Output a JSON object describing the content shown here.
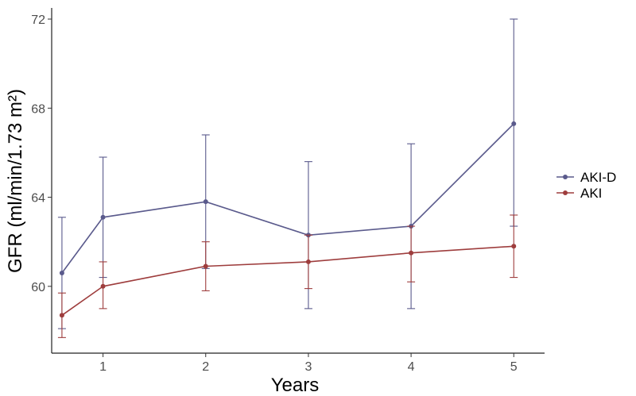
{
  "chart_data": {
    "type": "line",
    "title": "",
    "xlabel": "Years",
    "ylabel": "GFR (ml/min/1.73 m²)",
    "xlim": [
      0.5,
      5.3
    ],
    "ylim": [
      57.0,
      72.5
    ],
    "x_ticks": [
      "1",
      "2",
      "3",
      "4",
      "5"
    ],
    "y_ticks": [
      "60",
      "64",
      "68",
      "72"
    ],
    "grid": false,
    "legend_position": "right",
    "series": [
      {
        "name": "AKI-D",
        "color": "#5a5a8c",
        "points": [
          {
            "x": 0.6,
            "y": 60.6,
            "lower": 58.1,
            "upper": 63.1
          },
          {
            "x": 1.0,
            "y": 63.1,
            "lower": 60.4,
            "upper": 65.8
          },
          {
            "x": 2.0,
            "y": 63.8,
            "lower": 60.8,
            "upper": 66.8
          },
          {
            "x": 3.0,
            "y": 62.3,
            "lower": 59.0,
            "upper": 65.6
          },
          {
            "x": 4.0,
            "y": 62.7,
            "lower": 59.0,
            "upper": 66.4
          },
          {
            "x": 5.0,
            "y": 67.3,
            "lower": 62.7,
            "upper": 72.0
          }
        ]
      },
      {
        "name": "AKI",
        "color": "#9e3d3d",
        "points": [
          {
            "x": 0.6,
            "y": 58.7,
            "lower": 57.7,
            "upper": 59.7
          },
          {
            "x": 1.0,
            "y": 60.0,
            "lower": 59.0,
            "upper": 61.1
          },
          {
            "x": 2.0,
            "y": 60.9,
            "lower": 59.8,
            "upper": 62.0
          },
          {
            "x": 3.0,
            "y": 61.1,
            "lower": 59.9,
            "upper": 62.3
          },
          {
            "x": 4.0,
            "y": 61.5,
            "lower": 60.2,
            "upper": 62.7
          },
          {
            "x": 5.0,
            "y": 61.8,
            "lower": 60.4,
            "upper": 63.2
          }
        ]
      }
    ]
  }
}
